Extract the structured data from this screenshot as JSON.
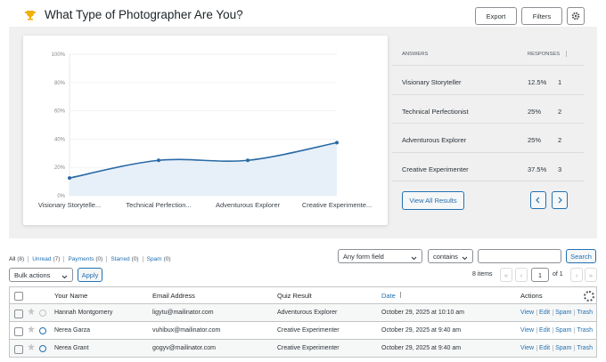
{
  "header": {
    "title": "What Type of Photographer Are You?",
    "buttons": [
      "Export",
      "Filters"
    ]
  },
  "chart_data": {
    "type": "line",
    "categories": [
      "Visionary Storytelle...",
      "Technical Perfection...",
      "Adventurous Explorer",
      "Creative Experimente..."
    ],
    "values": [
      12.5,
      25,
      25,
      37.5
    ],
    "color": "#2a6aa6",
    "fill_color": "#e7f0f9",
    "ylim": [
      0,
      100
    ],
    "yticks": [
      {
        "value": 0,
        "label": "0%"
      },
      {
        "value": 20,
        "label": "20%"
      },
      {
        "value": 40,
        "label": "40%"
      },
      {
        "value": 60,
        "label": "60%"
      },
      {
        "value": 80,
        "label": "80%"
      },
      {
        "value": 100,
        "label": "100%"
      }
    ],
    "grid": true
  },
  "results": {
    "columns": [
      "ANSWERS",
      "RESPONSES"
    ],
    "rows": [
      [
        "Visionary Storyteller",
        "12.5%",
        1
      ],
      [
        "Technical Perfectionist",
        "25%",
        2
      ],
      [
        "Adventurous Explorer",
        "25%",
        2
      ],
      [
        "Creative Experimenter",
        "37.5%",
        3
      ]
    ],
    "button": "View All Results"
  },
  "entries": {
    "filters": [
      {
        "label": "All",
        "count": "(8)"
      },
      {
        "label": "Unread",
        "count": "(7)"
      },
      {
        "label": "Payments",
        "count": "(0)"
      },
      {
        "label": "Starred",
        "count": "(0)"
      },
      {
        "label": "Spam",
        "count": "(0)"
      }
    ],
    "field_select": "Any form field",
    "operator_select": "contains",
    "search_button": "Search",
    "bulk_select": "Bulk actions",
    "apply_button": "Apply",
    "item_count": "8 items",
    "page": 1,
    "page_of": "of 1",
    "pager": [
      "«",
      "‹",
      "›",
      "»"
    ],
    "columns": [
      "Your Name",
      "Email Address",
      "Quiz Result",
      "Date",
      "Actions"
    ],
    "rows": [
      {
        "name": "Hannah Montgomery",
        "email": "ligytu@mailinator.com",
        "result": "Adventurous Explorer",
        "date": "October 29, 2025 at 10:10 am",
        "unread": false
      },
      {
        "name": "Nerea Garza",
        "email": "vuhibux@mailinator.com",
        "result": "Creative Experimenter",
        "date": "October 29, 2025 at 9:40 am",
        "unread": true
      },
      {
        "name": "Nerea Grant",
        "email": "gogyv@mailinator.com",
        "result": "Creative Experimenter",
        "date": "October 29, 2025 at 9:40 am",
        "unread": true
      }
    ],
    "actions": [
      "View",
      "Edit",
      "Spam",
      "Trash"
    ]
  }
}
